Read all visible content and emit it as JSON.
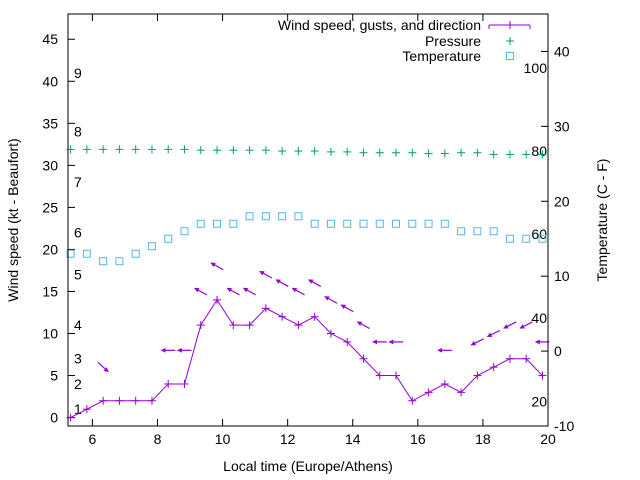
{
  "chart_data": {
    "type": "line",
    "title": "",
    "xlabel": "Local time (Europe/Athens)",
    "ylabel_left": "Wind speed (kt - Beaufort)",
    "ylabel_right": "Temperature (C - F)",
    "grid": false,
    "legend_position": "top-right",
    "xlim": [
      5.25,
      20
    ],
    "ylim_left": [
      -1,
      48
    ],
    "ylim_right": [
      -10,
      45
    ],
    "x_ticks": [
      6,
      8,
      10,
      12,
      14,
      16,
      18,
      20
    ],
    "y_left_ticks": [
      0,
      5,
      10,
      15,
      20,
      25,
      30,
      35,
      40,
      45
    ],
    "y_right_ticks": [
      -10,
      0,
      10,
      20,
      30,
      40
    ],
    "beaufort_labels": [
      {
        "label": "1",
        "kt": 1
      },
      {
        "label": "2",
        "kt": 4
      },
      {
        "label": "3",
        "kt": 7
      },
      {
        "label": "4",
        "kt": 11
      },
      {
        "label": "5",
        "kt": 17
      },
      {
        "label": "6",
        "kt": 22
      },
      {
        "label": "7",
        "kt": 28
      },
      {
        "label": "8",
        "kt": 34
      },
      {
        "label": "9",
        "kt": 41
      }
    ],
    "fahrenheit_labels": [
      {
        "label": "20",
        "temp_c": -6.7
      },
      {
        "label": "40",
        "temp_c": 4.4
      },
      {
        "label": "60",
        "temp_c": 15.6
      },
      {
        "label": "80",
        "temp_c": 26.7
      },
      {
        "label": "100",
        "temp_c": 37.8
      }
    ],
    "series": [
      {
        "name": "Wind speed, gusts, and direction",
        "color": "#9400d3",
        "axis": "left",
        "x": [
          5.33,
          5.83,
          6.33,
          6.83,
          7.33,
          7.83,
          8.33,
          8.83,
          9.33,
          9.83,
          10.33,
          10.83,
          11.33,
          11.83,
          12.33,
          12.83,
          13.33,
          13.83,
          14.33,
          14.83,
          15.33,
          15.83,
          16.33,
          16.83,
          17.33,
          17.83,
          18.33,
          18.83,
          19.33,
          19.83
        ],
        "y": [
          0,
          1,
          2,
          2,
          2,
          2,
          4,
          4,
          11,
          14,
          11,
          11,
          13,
          12,
          11,
          12,
          10,
          9,
          7,
          5,
          5,
          2,
          3,
          4,
          3,
          5,
          6,
          7,
          7,
          5
        ]
      },
      {
        "name": "Pressure",
        "color": "#009e73",
        "axis": "left",
        "x": [
          5.33,
          5.83,
          6.33,
          6.83,
          7.33,
          7.83,
          8.33,
          8.83,
          9.33,
          9.83,
          10.33,
          10.83,
          11.33,
          11.83,
          12.33,
          12.83,
          13.33,
          13.83,
          14.33,
          14.83,
          15.33,
          15.83,
          16.33,
          16.83,
          17.33,
          17.83,
          18.33,
          18.83,
          19.33,
          19.83
        ],
        "y": [
          31.9,
          31.9,
          31.9,
          31.9,
          31.9,
          31.9,
          31.9,
          31.9,
          31.8,
          31.8,
          31.8,
          31.8,
          31.8,
          31.7,
          31.7,
          31.7,
          31.6,
          31.6,
          31.5,
          31.5,
          31.5,
          31.5,
          31.4,
          31.4,
          31.5,
          31.5,
          31.3,
          31.3,
          31.3,
          31.3
        ]
      },
      {
        "name": "Temperature",
        "color": "#56b4e9",
        "axis": "right",
        "x": [
          5.33,
          5.83,
          6.33,
          6.83,
          7.33,
          7.83,
          8.33,
          8.83,
          9.33,
          9.83,
          10.33,
          10.83,
          11.33,
          11.83,
          12.33,
          12.83,
          13.33,
          13.83,
          14.33,
          14.83,
          15.33,
          15.83,
          16.33,
          16.83,
          17.33,
          17.83,
          18.33,
          18.83,
          19.33,
          19.83
        ],
        "y": [
          13,
          13,
          12,
          12,
          13,
          14,
          15,
          16,
          17,
          17,
          17,
          18,
          18,
          18,
          18,
          17,
          17,
          17,
          17,
          17,
          17,
          17,
          17,
          17,
          16,
          16,
          16,
          15,
          15,
          15
        ]
      }
    ],
    "wind_arrows": [
      {
        "x": 6.33,
        "kt": 6,
        "dir": "se"
      },
      {
        "x": 8.33,
        "kt": 8,
        "dir": "w"
      },
      {
        "x": 8.83,
        "kt": 8,
        "dir": "w"
      },
      {
        "x": 9.33,
        "kt": 15,
        "dir": "nw"
      },
      {
        "x": 9.83,
        "kt": 18,
        "dir": "nw"
      },
      {
        "x": 10.33,
        "kt": 15,
        "dir": "nw"
      },
      {
        "x": 10.83,
        "kt": 15,
        "dir": "nw"
      },
      {
        "x": 11.33,
        "kt": 17,
        "dir": "nw"
      },
      {
        "x": 11.83,
        "kt": 16,
        "dir": "nw"
      },
      {
        "x": 12.33,
        "kt": 15,
        "dir": "nw"
      },
      {
        "x": 12.83,
        "kt": 16,
        "dir": "nw"
      },
      {
        "x": 13.33,
        "kt": 14,
        "dir": "nw"
      },
      {
        "x": 13.83,
        "kt": 13,
        "dir": "nw"
      },
      {
        "x": 14.33,
        "kt": 11,
        "dir": "nw"
      },
      {
        "x": 14.83,
        "kt": 9,
        "dir": "w"
      },
      {
        "x": 15.33,
        "kt": 9,
        "dir": "w"
      },
      {
        "x": 16.83,
        "kt": 8,
        "dir": "w"
      },
      {
        "x": 17.83,
        "kt": 9,
        "dir": "sw"
      },
      {
        "x": 18.33,
        "kt": 10,
        "dir": "sw"
      },
      {
        "x": 18.83,
        "kt": 11,
        "dir": "sw"
      },
      {
        "x": 19.33,
        "kt": 11,
        "dir": "sw"
      },
      {
        "x": 19.83,
        "kt": 9,
        "dir": "w"
      }
    ]
  }
}
